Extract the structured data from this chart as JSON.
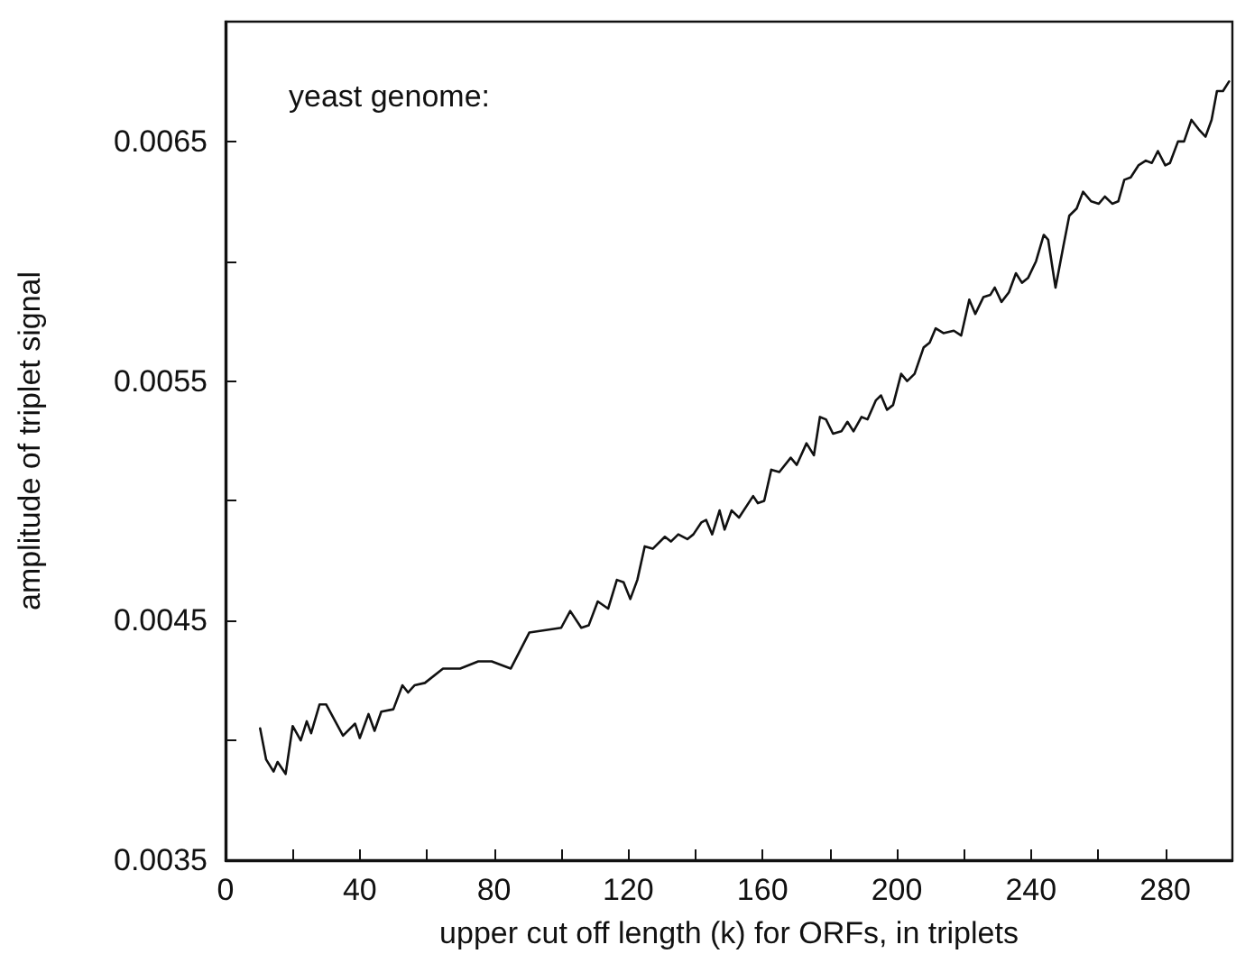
{
  "chart_data": {
    "type": "line",
    "xlabel": "upper cut off length (k) for ORFs, in triplets",
    "ylabel": "amplitude of triplet signal",
    "annotations": [
      "yeast genome:"
    ],
    "xlim": [
      0,
      300
    ],
    "xticks": [
      0,
      {
        "value": 20,
        "label": null
      },
      40,
      {
        "value": 60,
        "label": null
      },
      80,
      {
        "value": 100,
        "label": null
      },
      120,
      {
        "value": 140,
        "label": null
      },
      160,
      {
        "value": 180,
        "label": null
      },
      200,
      {
        "value": 220,
        "label": null
      },
      240,
      {
        "value": 260,
        "label": null
      },
      280
    ],
    "ylim": [
      0.0035,
      0.007
    ],
    "yticks": [
      0.0035,
      {
        "value": 0.004,
        "label": null
      },
      0.0045,
      {
        "value": 0.005,
        "label": null
      },
      0.0055,
      {
        "value": 0.006,
        "label": null
      },
      0.0065
    ],
    "grid": false,
    "marker": "none",
    "line_style": "solid",
    "series": [
      {
        "color": "#111111",
        "x": [
          10.3,
          12.1,
          14.3,
          15.5,
          17.9,
          20,
          22.4,
          24.2,
          25.5,
          28,
          30,
          35,
          38.6,
          40,
          42.6,
          44.4,
          46.4,
          50,
          52.7,
          54.4,
          56.3,
          59.4,
          64.8,
          69.9,
          75.3,
          79.3,
          85,
          90.5,
          100,
          102.7,
          106,
          108.2,
          110.9,
          114,
          116.6,
          118.6,
          120.6,
          122.7,
          124.9,
          127.3,
          130.9,
          132.7,
          134.9,
          137.6,
          139.4,
          141.8,
          143.2,
          145,
          147.2,
          148.7,
          150.8,
          153,
          157.2,
          158.6,
          160.5,
          162.6,
          165,
          168.4,
          170.2,
          173.1,
          175.3,
          177.1,
          178.9,
          181,
          183.5,
          185.3,
          187.1,
          189.5,
          191.3,
          193.8,
          195.3,
          197.1,
          198.9,
          201.3,
          203.1,
          205.3,
          208,
          209.8,
          211.6,
          213.9,
          217,
          219.2,
          221.6,
          223.4,
          225.8,
          227.9,
          229.2,
          231.2,
          233.4,
          235.5,
          237.3,
          239.1,
          241.5,
          243.8,
          245.1,
          247.3,
          249.6,
          251.4,
          253.6,
          255.5,
          257.9,
          260.2,
          262,
          264.2,
          266,
          267.8,
          269.7,
          272,
          274.2,
          276,
          277.8,
          280,
          281.4,
          283.8,
          285.6,
          287.8,
          290,
          292,
          293.8,
          295.4,
          297.2,
          299
        ],
        "values": [
          0.00405,
          0.00392,
          0.00387,
          0.00391,
          0.00386,
          0.00406,
          0.004,
          0.00408,
          0.00403,
          0.00415,
          0.00415,
          0.00402,
          0.00407,
          0.00401,
          0.00411,
          0.00404,
          0.00412,
          0.00413,
          0.00423,
          0.0042,
          0.00423,
          0.00424,
          0.0043,
          0.0043,
          0.00433,
          0.00433,
          0.0043,
          0.00445,
          0.00447,
          0.00454,
          0.00447,
          0.00448,
          0.00458,
          0.00455,
          0.00467,
          0.00466,
          0.00459,
          0.00467,
          0.00481,
          0.0048,
          0.00485,
          0.00483,
          0.00486,
          0.00484,
          0.00486,
          0.00491,
          0.00492,
          0.00486,
          0.00496,
          0.00488,
          0.00496,
          0.00493,
          0.00502,
          0.00499,
          0.005,
          0.00513,
          0.00512,
          0.00518,
          0.00515,
          0.00524,
          0.00519,
          0.00535,
          0.00534,
          0.00528,
          0.00529,
          0.00533,
          0.00529,
          0.00535,
          0.00534,
          0.00542,
          0.00544,
          0.00538,
          0.0054,
          0.00553,
          0.0055,
          0.00553,
          0.00564,
          0.00566,
          0.00572,
          0.0057,
          0.00571,
          0.00569,
          0.00584,
          0.00578,
          0.00585,
          0.00586,
          0.00589,
          0.00583,
          0.00587,
          0.00595,
          0.00591,
          0.00593,
          0.006,
          0.00611,
          0.00609,
          0.00589,
          0.00606,
          0.00619,
          0.00622,
          0.00629,
          0.00625,
          0.00624,
          0.00627,
          0.00624,
          0.00625,
          0.00634,
          0.00635,
          0.0064,
          0.00642,
          0.00641,
          0.00646,
          0.0064,
          0.00641,
          0.0065,
          0.0065,
          0.00659,
          0.00655,
          0.00652,
          0.00659,
          0.00671,
          0.00671,
          0.00675
        ]
      }
    ]
  }
}
